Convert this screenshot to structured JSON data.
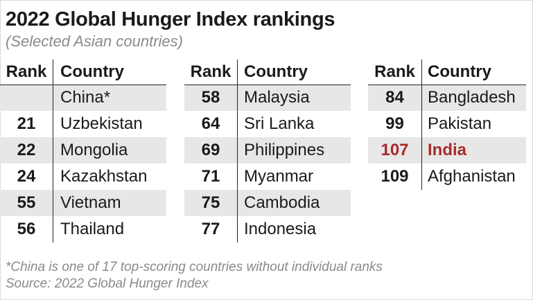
{
  "title": "2022 Global Hunger Index rankings",
  "subtitle": "(Selected Asian countries)",
  "headers": {
    "rank": "Rank",
    "country": "Country"
  },
  "highlight_color": "#a82b2b",
  "chart_data": {
    "type": "table",
    "title": "2022 Global Hunger Index rankings",
    "subtitle": "(Selected Asian countries)",
    "columns": [
      "Rank",
      "Country"
    ],
    "tables": [
      [
        {
          "rank": "",
          "country": "China*"
        },
        {
          "rank": "21",
          "country": "Uzbekistan"
        },
        {
          "rank": "22",
          "country": "Mongolia"
        },
        {
          "rank": "24",
          "country": "Kazakhstan"
        },
        {
          "rank": "55",
          "country": "Vietnam"
        },
        {
          "rank": "56",
          "country": "Thailand"
        }
      ],
      [
        {
          "rank": "58",
          "country": "Malaysia"
        },
        {
          "rank": "64",
          "country": "Sri Lanka"
        },
        {
          "rank": "69",
          "country": "Philippines"
        },
        {
          "rank": "71",
          "country": "Myanmar"
        },
        {
          "rank": "75",
          "country": "Cambodia"
        },
        {
          "rank": "77",
          "country": "Indonesia"
        }
      ],
      [
        {
          "rank": "84",
          "country": "Bangladesh"
        },
        {
          "rank": "99",
          "country": "Pakistan"
        },
        {
          "rank": "107",
          "country": "India",
          "highlight": true
        },
        {
          "rank": "109",
          "country": "Afghanistan"
        }
      ]
    ]
  },
  "footnote": "*China is one of 17 top-scoring countries without individual ranks",
  "source": "Source: 2022 Global Hunger Index"
}
